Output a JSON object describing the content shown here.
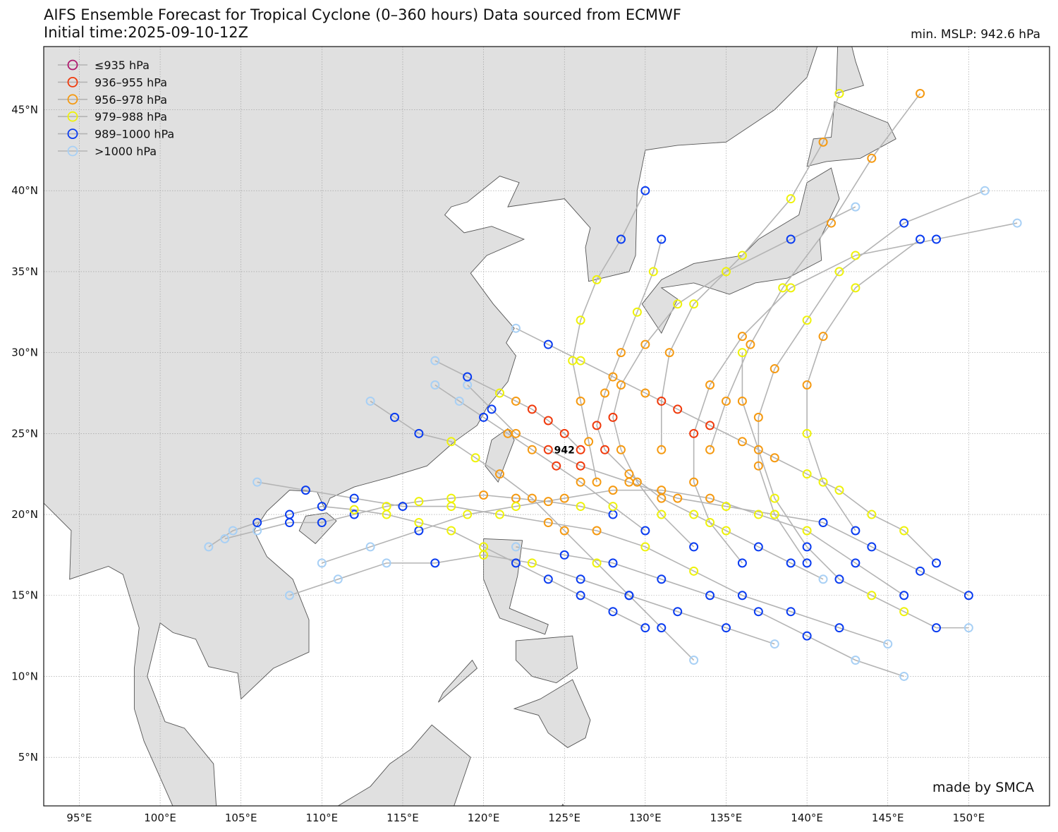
{
  "chart_data": {
    "type": "scatter",
    "title": "AIFS Ensemble Forecast for Tropical Cyclone (0–360 hours) Data sourced from ECMWF",
    "subtitle": "Initial time:2025-09-10-12Z",
    "min_mslp_label": "min. MSLP: 942.6 hPa",
    "min_marker_label": "942",
    "min_marker_position": [
      125.0,
      24.0
    ],
    "credit": "made by SMCA",
    "xlim": [
      92.8,
      155.0
    ],
    "ylim": [
      2.0,
      48.9
    ],
    "x_ticks": [
      {
        "value": 95,
        "label": "95°E"
      },
      {
        "value": 100,
        "label": "100°E"
      },
      {
        "value": 105,
        "label": "105°E"
      },
      {
        "value": 110,
        "label": "110°E"
      },
      {
        "value": 115,
        "label": "115°E"
      },
      {
        "value": 120,
        "label": "120°E"
      },
      {
        "value": 125,
        "label": "125°E"
      },
      {
        "value": 130,
        "label": "130°E"
      },
      {
        "value": 135,
        "label": "135°E"
      },
      {
        "value": 140,
        "label": "140°E"
      },
      {
        "value": 145,
        "label": "145°E"
      },
      {
        "value": 150,
        "label": "150°E"
      }
    ],
    "y_ticks": [
      {
        "value": 5,
        "label": "5°N"
      },
      {
        "value": 10,
        "label": "10°N"
      },
      {
        "value": 15,
        "label": "15°N"
      },
      {
        "value": 20,
        "label": "20°N"
      },
      {
        "value": 25,
        "label": "25°N"
      },
      {
        "value": 30,
        "label": "30°N"
      },
      {
        "value": 35,
        "label": "35°N"
      },
      {
        "value": 40,
        "label": "40°N"
      },
      {
        "value": 45,
        "label": "45°N"
      }
    ],
    "grid": true,
    "legend_position": "top-left",
    "legend": [
      {
        "label": "≤935 hPa",
        "color": "#b0186e"
      },
      {
        "label": "936–955 hPa",
        "color": "#f03a0c"
      },
      {
        "label": "956–978 hPa",
        "color": "#f59a12"
      },
      {
        "label": "979–988 hPa",
        "color": "#eef20c"
      },
      {
        "label": "989–1000 hPa",
        "color": "#0a3cf0"
      },
      {
        "label": ">1000 hPa",
        "color": "#a8d0f5"
      }
    ],
    "track_color": "#b4b4b4",
    "tracks": [
      [
        [
          128,
          20,
          4
        ],
        [
          126,
          20.5,
          3
        ],
        [
          124,
          20.8,
          2
        ],
        [
          122,
          21,
          2
        ],
        [
          120,
          21.2,
          2
        ],
        [
          118,
          21,
          3
        ],
        [
          116,
          20.8,
          3
        ],
        [
          114,
          20.5,
          3
        ],
        [
          112,
          20,
          4
        ],
        [
          110,
          19.5,
          4
        ],
        [
          108,
          19.5,
          4
        ],
        [
          106,
          19,
          5
        ],
        [
          104,
          18.5,
          5
        ]
      ],
      [
        [
          130,
          19,
          4
        ],
        [
          128,
          20.5,
          3
        ],
        [
          126,
          22,
          2
        ],
        [
          124.5,
          23,
          1
        ],
        [
          123,
          24,
          2
        ],
        [
          121.5,
          25,
          2
        ],
        [
          120,
          26,
          4
        ],
        [
          118.5,
          27,
          5
        ],
        [
          117,
          28,
          5
        ]
      ],
      [
        [
          133,
          18,
          4
        ],
        [
          131,
          20,
          3
        ],
        [
          129.5,
          22,
          2
        ],
        [
          128.5,
          24,
          2
        ],
        [
          128,
          26,
          1
        ],
        [
          128.5,
          28,
          2
        ],
        [
          130,
          30.5,
          2
        ],
        [
          132,
          33,
          3
        ],
        [
          135,
          35,
          3
        ],
        [
          139,
          37,
          4
        ],
        [
          143,
          39,
          5
        ]
      ],
      [
        [
          136,
          17,
          4
        ],
        [
          134,
          19.5,
          3
        ],
        [
          133,
          22,
          2
        ],
        [
          133,
          25,
          1
        ],
        [
          134,
          28,
          2
        ],
        [
          136,
          31,
          2
        ],
        [
          139,
          34,
          3
        ],
        [
          143,
          36,
          3
        ],
        [
          148,
          37,
          4
        ],
        [
          153,
          38,
          5
        ]
      ],
      [
        [
          140,
          17,
          4
        ],
        [
          138,
          20,
          3
        ],
        [
          137,
          23,
          2
        ],
        [
          137,
          26,
          2
        ],
        [
          138,
          29,
          2
        ],
        [
          140,
          32,
          3
        ],
        [
          142,
          35,
          3
        ],
        [
          146,
          38,
          4
        ],
        [
          151,
          40,
          5
        ]
      ],
      [
        [
          143,
          19,
          4
        ],
        [
          141,
          22,
          3
        ],
        [
          140,
          25,
          3
        ],
        [
          140,
          28,
          2
        ],
        [
          141,
          31,
          2
        ],
        [
          143,
          34,
          3
        ],
        [
          147,
          37,
          4
        ]
      ],
      [
        [
          146,
          15,
          4
        ],
        [
          143,
          17,
          4
        ],
        [
          140,
          19,
          3
        ],
        [
          137,
          20,
          3
        ],
        [
          134,
          21,
          2
        ],
        [
          131,
          21.5,
          2
        ],
        [
          128,
          21.5,
          2
        ],
        [
          125,
          21,
          2
        ],
        [
          122,
          20.5,
          3
        ],
        [
          119,
          20,
          3
        ],
        [
          116,
          19,
          4
        ],
        [
          113,
          18,
          5
        ],
        [
          110,
          17,
          5
        ]
      ],
      [
        [
          150,
          15,
          4
        ],
        [
          147,
          16.5,
          4
        ],
        [
          144,
          18,
          4
        ],
        [
          141,
          19.5,
          4
        ],
        [
          138,
          20,
          3
        ],
        [
          135,
          20.5,
          3
        ],
        [
          132,
          21,
          2
        ],
        [
          129,
          22,
          2
        ],
        [
          126,
          23,
          1
        ],
        [
          124,
          24,
          1
        ],
        [
          122,
          25,
          2
        ],
        [
          120.5,
          26.5,
          4
        ],
        [
          119,
          28,
          5
        ]
      ],
      [
        [
          138,
          12,
          5
        ],
        [
          135,
          13,
          4
        ],
        [
          132,
          14,
          4
        ],
        [
          129,
          15,
          4
        ],
        [
          126,
          16,
          4
        ],
        [
          123,
          17,
          3
        ],
        [
          120,
          17.5,
          3
        ],
        [
          117,
          17,
          4
        ],
        [
          114,
          17,
          5
        ],
        [
          111,
          16,
          5
        ],
        [
          108,
          15,
          5
        ]
      ],
      [
        [
          145,
          12,
          5
        ],
        [
          142,
          13,
          4
        ],
        [
          139,
          14,
          4
        ],
        [
          136,
          15,
          4
        ],
        [
          133,
          16.5,
          3
        ],
        [
          130,
          18,
          3
        ],
        [
          127,
          19,
          2
        ],
        [
          124,
          19.5,
          2
        ],
        [
          121,
          20,
          3
        ],
        [
          118,
          20.5,
          3
        ],
        [
          115,
          20.5,
          4
        ],
        [
          112,
          21,
          4
        ],
        [
          109,
          21.5,
          4
        ],
        [
          106,
          22,
          5
        ]
      ],
      [
        [
          146,
          10,
          5
        ],
        [
          143,
          11,
          5
        ],
        [
          140,
          12.5,
          4
        ],
        [
          137,
          14,
          4
        ],
        [
          134,
          15,
          4
        ],
        [
          131,
          16,
          4
        ],
        [
          128,
          17,
          4
        ],
        [
          125,
          17.5,
          4
        ],
        [
          122,
          18,
          5
        ]
      ],
      [
        [
          150,
          13,
          5
        ],
        [
          148,
          13,
          4
        ],
        [
          146,
          14,
          3
        ],
        [
          144,
          15,
          3
        ],
        [
          142,
          16,
          4
        ],
        [
          140,
          18,
          4
        ],
        [
          138,
          21,
          3
        ],
        [
          137,
          24,
          2
        ],
        [
          136,
          27,
          2
        ],
        [
          136,
          30,
          3
        ]
      ],
      [
        [
          127,
          22,
          2
        ],
        [
          126.5,
          24.5,
          2
        ],
        [
          126,
          27,
          2
        ],
        [
          125.5,
          29.5,
          3
        ],
        [
          126,
          32,
          3
        ],
        [
          127,
          34.5,
          3
        ],
        [
          128.5,
          37,
          4
        ],
        [
          130,
          40,
          4
        ]
      ],
      [
        [
          131,
          24,
          2
        ],
        [
          131,
          27,
          1
        ],
        [
          131.5,
          30,
          2
        ],
        [
          133,
          33,
          3
        ],
        [
          136,
          36,
          3
        ],
        [
          139,
          39.5,
          3
        ],
        [
          141,
          43,
          2
        ],
        [
          142,
          46,
          3
        ]
      ],
      [
        [
          134,
          24,
          2
        ],
        [
          135,
          27,
          2
        ],
        [
          136.5,
          30.5,
          2
        ],
        [
          138.5,
          34,
          3
        ],
        [
          141.5,
          38,
          2
        ],
        [
          144,
          42,
          2
        ],
        [
          147,
          46,
          2
        ]
      ],
      [
        [
          126,
          24,
          1
        ],
        [
          125,
          25,
          1
        ],
        [
          124,
          25.8,
          1
        ],
        [
          123,
          26.5,
          1
        ],
        [
          122,
          27,
          2
        ],
        [
          121,
          27.5,
          3
        ],
        [
          119,
          28.5,
          4
        ],
        [
          117,
          29.5,
          5
        ]
      ],
      [
        [
          141,
          16,
          5
        ],
        [
          139,
          17,
          4
        ],
        [
          137,
          18,
          4
        ],
        [
          135,
          19,
          3
        ],
        [
          133,
          20,
          3
        ],
        [
          131,
          21,
          2
        ],
        [
          129,
          22.5,
          2
        ],
        [
          127.5,
          24,
          1
        ],
        [
          127,
          25.5,
          1
        ],
        [
          127.5,
          27.5,
          2
        ],
        [
          128.5,
          30,
          2
        ],
        [
          129.5,
          32.5,
          3
        ],
        [
          130.5,
          35,
          3
        ],
        [
          131,
          37,
          4
        ]
      ],
      [
        [
          148,
          17,
          4
        ],
        [
          146,
          19,
          3
        ],
        [
          144,
          20,
          3
        ],
        [
          142,
          21.5,
          3
        ],
        [
          140,
          22.5,
          3
        ],
        [
          138,
          23.5,
          2
        ],
        [
          136,
          24.5,
          2
        ],
        [
          134,
          25.5,
          1
        ],
        [
          132,
          26.5,
          1
        ],
        [
          130,
          27.5,
          2
        ],
        [
          128,
          28.5,
          2
        ],
        [
          126,
          29.5,
          3
        ],
        [
          124,
          30.5,
          4
        ],
        [
          122,
          31.5,
          5
        ]
      ],
      [
        [
          130,
          13,
          4
        ],
        [
          128,
          14,
          4
        ],
        [
          126,
          15,
          4
        ],
        [
          124,
          16,
          4
        ],
        [
          122,
          17,
          4
        ],
        [
          120,
          18,
          3
        ],
        [
          118,
          19,
          3
        ],
        [
          116,
          19.5,
          3
        ],
        [
          114,
          20,
          3
        ],
        [
          112,
          20.3,
          3
        ],
        [
          110,
          20.5,
          4
        ],
        [
          108,
          20,
          4
        ],
        [
          106,
          19.5,
          4
        ],
        [
          104.5,
          19,
          5
        ],
        [
          103,
          18,
          5
        ]
      ],
      [
        [
          133,
          11,
          5
        ],
        [
          131,
          13,
          4
        ],
        [
          129,
          15,
          4
        ],
        [
          127,
          17,
          3
        ],
        [
          125,
          19,
          2
        ],
        [
          123,
          21,
          2
        ],
        [
          121,
          22.5,
          2
        ],
        [
          119.5,
          23.5,
          3
        ],
        [
          118,
          24.5,
          3
        ],
        [
          116,
          25,
          4
        ],
        [
          114.5,
          26,
          4
        ],
        [
          113,
          27,
          5
        ]
      ]
    ]
  }
}
